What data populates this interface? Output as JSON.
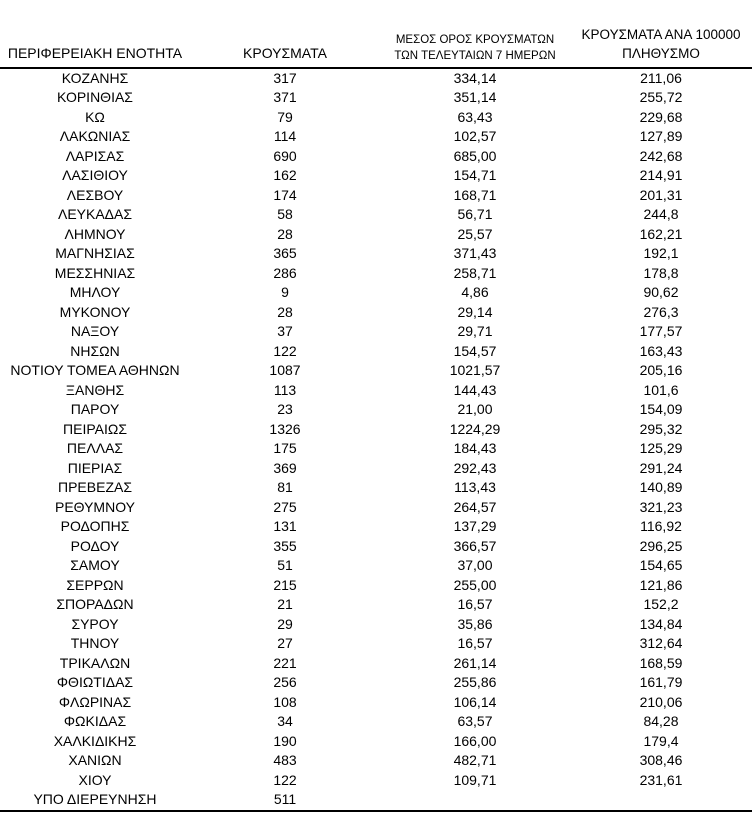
{
  "colors": {
    "background": "#ffffff",
    "text": "#000000",
    "rule": "#000000"
  },
  "chart_data": {
    "type": "table",
    "title": "",
    "decimal_separator": ",",
    "headers": [
      [
        "ΠΕΡΙΦΕΡΕΙΑΚΗ ΕΝΟΤΗΤΑ"
      ],
      [
        "ΚΡΟΥΣΜΑΤΑ"
      ],
      [
        "ΜΕΣΟΣ ΟΡΟΣ ΚΡΟΥΣΜΑΤΩΝ",
        "ΤΩΝ ΤΕΛΕΥΤΑΙΩΝ 7 ΗΜΕΡΩΝ"
      ],
      [
        "ΚΡΟΥΣΜΑΤΑ ΑΝΑ 100000",
        "ΠΛΗΘΥΣΜΟ"
      ]
    ],
    "rows": [
      [
        "ΚΟΖΑΝΗΣ",
        "317",
        "334,14",
        "211,06"
      ],
      [
        "ΚΟΡΙΝΘΙΑΣ",
        "371",
        "351,14",
        "255,72"
      ],
      [
        "ΚΩ",
        "79",
        "63,43",
        "229,68"
      ],
      [
        "ΛΑΚΩΝΙΑΣ",
        "114",
        "102,57",
        "127,89"
      ],
      [
        "ΛΑΡΙΣΑΣ",
        "690",
        "685,00",
        "242,68"
      ],
      [
        "ΛΑΣΙΘΙΟΥ",
        "162",
        "154,71",
        "214,91"
      ],
      [
        "ΛΕΣΒΟΥ",
        "174",
        "168,71",
        "201,31"
      ],
      [
        "ΛΕΥΚΑΔΑΣ",
        "58",
        "56,71",
        "244,8"
      ],
      [
        "ΛΗΜΝΟΥ",
        "28",
        "25,57",
        "162,21"
      ],
      [
        "ΜΑΓΝΗΣΙΑΣ",
        "365",
        "371,43",
        "192,1"
      ],
      [
        "ΜΕΣΣΗΝΙΑΣ",
        "286",
        "258,71",
        "178,8"
      ],
      [
        "ΜΗΛΟΥ",
        "9",
        "4,86",
        "90,62"
      ],
      [
        "ΜΥΚΟΝΟΥ",
        "28",
        "29,14",
        "276,3"
      ],
      [
        "ΝΑΞΟΥ",
        "37",
        "29,71",
        "177,57"
      ],
      [
        "ΝΗΣΩΝ",
        "122",
        "154,57",
        "163,43"
      ],
      [
        "ΝΟΤΙΟΥ ΤΟΜΕΑ ΑΘΗΝΩΝ",
        "1087",
        "1021,57",
        "205,16"
      ],
      [
        "ΞΑΝΘΗΣ",
        "113",
        "144,43",
        "101,6"
      ],
      [
        "ΠΑΡΟΥ",
        "23",
        "21,00",
        "154,09"
      ],
      [
        "ΠΕΙΡΑΙΩΣ",
        "1326",
        "1224,29",
        "295,32"
      ],
      [
        "ΠΕΛΛΑΣ",
        "175",
        "184,43",
        "125,29"
      ],
      [
        "ΠΙΕΡΙΑΣ",
        "369",
        "292,43",
        "291,24"
      ],
      [
        "ΠΡΕΒΕΖΑΣ",
        "81",
        "113,43",
        "140,89"
      ],
      [
        "ΡΕΘΥΜΝΟΥ",
        "275",
        "264,57",
        "321,23"
      ],
      [
        "ΡΟΔΟΠΗΣ",
        "131",
        "137,29",
        "116,92"
      ],
      [
        "ΡΟΔΟΥ",
        "355",
        "366,57",
        "296,25"
      ],
      [
        "ΣΑΜΟΥ",
        "51",
        "37,00",
        "154,65"
      ],
      [
        "ΣΕΡΡΩΝ",
        "215",
        "255,00",
        "121,86"
      ],
      [
        "ΣΠΟΡΑΔΩΝ",
        "21",
        "16,57",
        "152,2"
      ],
      [
        "ΣΥΡΟΥ",
        "29",
        "35,86",
        "134,84"
      ],
      [
        "ΤΗΝΟΥ",
        "27",
        "16,57",
        "312,64"
      ],
      [
        "ΤΡΙΚΑΛΩΝ",
        "221",
        "261,14",
        "168,59"
      ],
      [
        "ΦΘΙΩΤΙΔΑΣ",
        "256",
        "255,86",
        "161,79"
      ],
      [
        "ΦΛΩΡΙΝΑΣ",
        "108",
        "106,14",
        "210,06"
      ],
      [
        "ΦΩΚΙΔΑΣ",
        "34",
        "63,57",
        "84,28"
      ],
      [
        "ΧΑΛΚΙΔΙΚΗΣ",
        "190",
        "166,00",
        "179,4"
      ],
      [
        "ΧΑΝΙΩΝ",
        "483",
        "482,71",
        "308,46"
      ],
      [
        "ΧΙΟΥ",
        "122",
        "109,71",
        "231,61"
      ],
      [
        "ΥΠΟ ΔΙΕΡΕΥΝΗΣΗ",
        "511",
        "",
        ""
      ]
    ]
  }
}
